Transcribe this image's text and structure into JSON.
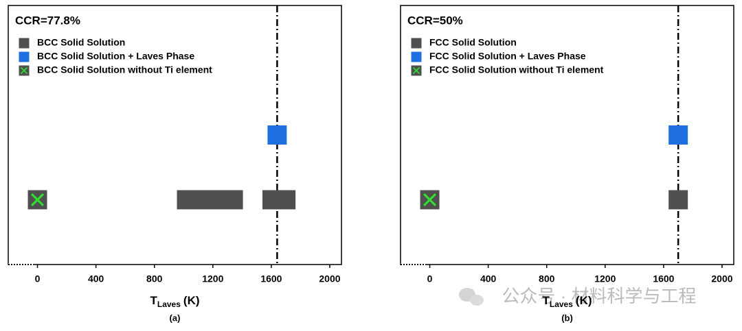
{
  "chart_data": [
    {
      "type": "scatter",
      "title": "CCR=77.8%",
      "x_label": {
        "main": "T",
        "sub": "Laves",
        "unit": "(K)"
      },
      "caption": "(a)",
      "xlim": [
        -200,
        2080
      ],
      "xticks": [
        0,
        400,
        800,
        1200,
        1600,
        2000
      ],
      "ylim": [
        0,
        4
      ],
      "reference_line_x": 1640,
      "legend": "upper left",
      "series": [
        {
          "name": "BCC Solid Solution",
          "color": "#505050",
          "marker": "square",
          "x": [
            1020,
            1100,
            1180,
            1260,
            1340,
            1605,
            1700
          ],
          "values": [
            1,
            1,
            1,
            1,
            1,
            1,
            1
          ]
        },
        {
          "name": "BCC Solid Solution + Laves Phase",
          "color": "#1f6fe0",
          "marker": "square",
          "x": [
            1640
          ],
          "values": [
            2
          ]
        },
        {
          "name": "BCC Solid Solution without Ti element",
          "color": "#2fe02f",
          "marker": "cross-square",
          "x": [
            0
          ],
          "values": [
            1
          ]
        }
      ]
    },
    {
      "type": "scatter",
      "title": "CCR=50%",
      "x_label": {
        "main": "T",
        "sub": "Laves",
        "unit": "(K)"
      },
      "caption": "(b)",
      "xlim": [
        -200,
        2080
      ],
      "xticks": [
        0,
        400,
        800,
        1200,
        1600,
        2000
      ],
      "ylim": [
        0,
        4
      ],
      "reference_line_x": 1700,
      "legend": "upper left",
      "series": [
        {
          "name": "FCC Solid Solution",
          "color": "#505050",
          "marker": "square",
          "x": [
            1700
          ],
          "values": [
            1
          ]
        },
        {
          "name": "FCC Solid Solution + Laves Phase",
          "color": "#1f6fe0",
          "marker": "square",
          "x": [
            1700
          ],
          "values": [
            2
          ]
        },
        {
          "name": "FCC Solid Solution without Ti element",
          "color": "#2fe02f",
          "marker": "cross-square",
          "x": [
            0
          ],
          "values": [
            1
          ]
        }
      ]
    }
  ],
  "watermark": "公众号 · 材料科学与工程"
}
